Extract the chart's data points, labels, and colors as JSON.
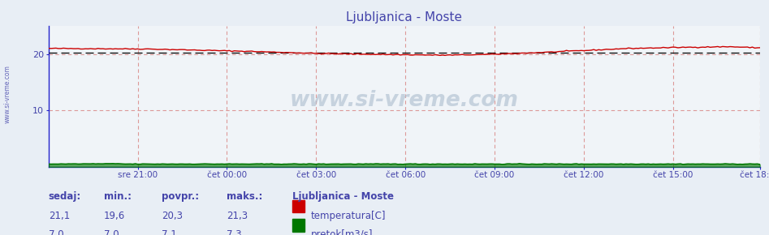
{
  "title": "Ljubljanica - Moste",
  "title_color": "#4444aa",
  "bg_color": "#e8eef5",
  "plot_bg_color": "#f0f4f8",
  "grid_v_color": "#dd9999",
  "grid_h_color": "#dd9999",
  "axis_color": "#2222cc",
  "tick_label_color": "#4444aa",
  "watermark": "www.si-vreme.com",
  "xlabel_ticks": [
    "sre 21:00",
    "čet 00:00",
    "čet 03:00",
    "čet 06:00",
    "čet 09:00",
    "čet 12:00",
    "čet 15:00",
    "čet 18:00"
  ],
  "yticks": [
    10,
    20
  ],
  "ymin": 0,
  "ymax": 25,
  "xmin": 0,
  "xmax": 287,
  "temp_avg": 20.3,
  "temp_color": "#cc0000",
  "avg_line_color": "#000000",
  "flow_color": "#007700",
  "legend_title": "Ljubljanica - Moste",
  "footer_labels": [
    "sedaj:",
    "min.:",
    "povpr.:",
    "maks.:"
  ],
  "footer_temp": [
    "21,1",
    "19,6",
    "20,3",
    "21,3"
  ],
  "footer_flow": [
    "7,0",
    "7,0",
    "7,1",
    "7,3"
  ],
  "footer_color": "#4444aa",
  "sidebar_text": "www.si-vreme.com",
  "sidebar_color": "#4444aa",
  "temp_legend_label": "temperatura[C]",
  "flow_legend_label": "pretok[m3/s]"
}
